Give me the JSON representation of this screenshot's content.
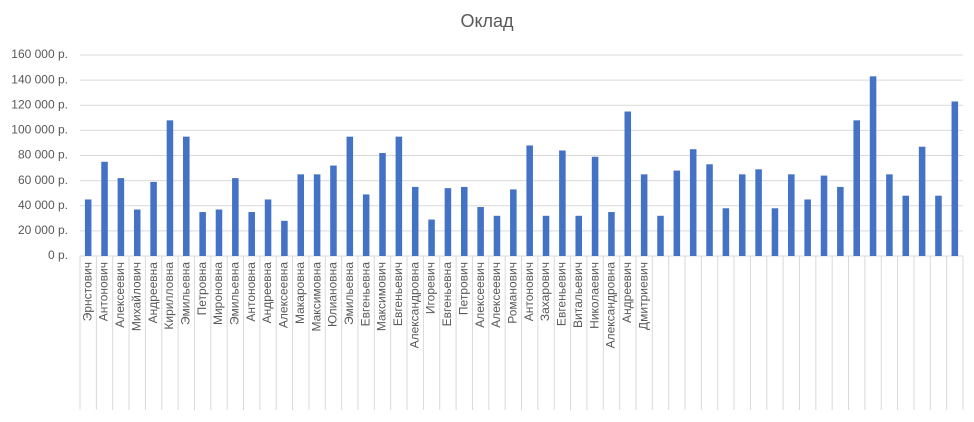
{
  "chart_data": {
    "type": "bar",
    "title": "Оклад",
    "categories": [
      "Эрнстович",
      "Антонович",
      "Алексеевич",
      "Михайлович",
      "Андреевна",
      "Кирилловна",
      "Эмильевна",
      "Петровна",
      "Мироновна",
      "Эмильевна",
      "Антоновна",
      "Андреевна",
      "Алексеевна",
      "Макаровна",
      "Максимовна",
      "Юлиановна",
      "Эмильевна",
      "Евгеньевна",
      "Максимович",
      "Евгеньевич",
      "Александровна",
      "Игоревич",
      "Евгеньевна",
      "Петрович",
      "Алексеевич",
      "Алексеевич",
      "Романович",
      "Антонович",
      "Захарович",
      "Евгеньевич",
      "Витальевич",
      "Николаевич",
      "Александровна",
      "Андреевич",
      "Дмитриевич",
      null,
      null,
      null,
      null,
      null,
      null,
      null,
      null,
      null,
      null,
      null,
      null,
      null,
      null,
      null,
      null,
      null,
      null,
      null
    ],
    "values": [
      45000,
      75000,
      62000,
      37000,
      59000,
      108000,
      95000,
      35000,
      37000,
      62000,
      35000,
      45000,
      28000,
      65000,
      65000,
      72000,
      95000,
      49000,
      82000,
      95000,
      55000,
      29000,
      54000,
      55000,
      39000,
      32000,
      53000,
      88000,
      32000,
      84000,
      32000,
      79000,
      35000,
      115000,
      65000,
      32000,
      68000,
      85000,
      73000,
      38000,
      65000,
      69000,
      38000,
      65000,
      45000,
      64000,
      55000,
      108000,
      143000,
      65000,
      48000,
      87000,
      48000,
      123000
    ],
    "color": "#4472c4",
    "ylim": [
      0,
      160000
    ],
    "yticks": [
      {
        "value": 0,
        "label": "0 р."
      },
      {
        "value": 20000,
        "label": "20 000 р."
      },
      {
        "value": 40000,
        "label": "40 000 р."
      },
      {
        "value": 60000,
        "label": "60 000 р."
      },
      {
        "value": 80000,
        "label": "80 000 р."
      },
      {
        "value": 100000,
        "label": "100 000 р."
      },
      {
        "value": 120000,
        "label": "120 000 р."
      },
      {
        "value": 140000,
        "label": "140 000 р."
      },
      {
        "value": 160000,
        "label": "160 000 р."
      }
    ],
    "grid": true
  }
}
